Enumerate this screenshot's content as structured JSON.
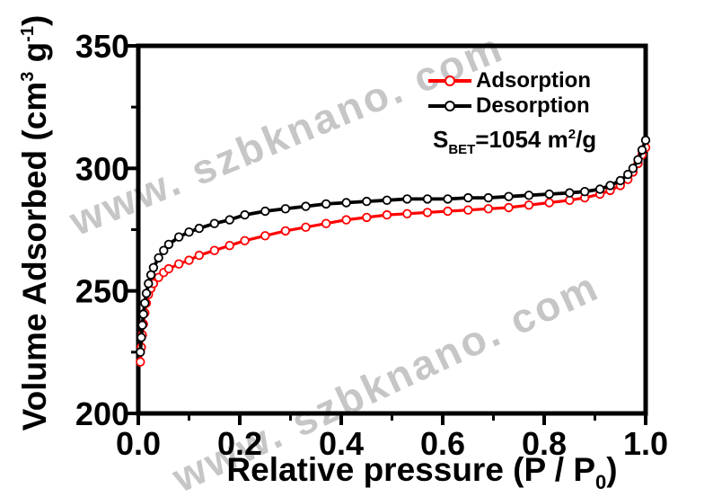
{
  "watermark": {
    "text": "www. szbknano. com",
    "color": "#c6c6c6"
  },
  "labels": {
    "ylabel_parts": {
      "pre": "Volume Adsorbed (cm",
      "sup1": "3",
      "mid": " g",
      "sup2": "-1",
      "post": ")"
    },
    "xlabel_parts": {
      "pre": "Relative pressure (P / P",
      "sub": "0",
      "post": ")"
    },
    "sbet_parts": {
      "pre": "S",
      "sub": "BET",
      "mid": "=1054 m",
      "sup": "2",
      "post": "/g"
    }
  },
  "chart_data": {
    "type": "line",
    "title": "",
    "xlabel": "Relative pressure (P / P₀)",
    "ylabel": "Volume Adsorbed (cm³ g⁻¹)",
    "annotation": "S_BET = 1054 m²/g",
    "xlim": [
      0.0,
      1.0
    ],
    "ylim": [
      200,
      350
    ],
    "x_major_ticks": [
      0.0,
      0.2,
      0.4,
      0.6,
      0.8,
      1.0
    ],
    "x_tick_labels": [
      "0.0",
      "0.2",
      "0.4",
      "0.6",
      "0.8",
      "1.0"
    ],
    "x_minor_ticks": [
      0.1,
      0.3,
      0.5,
      0.7,
      0.9
    ],
    "y_major_ticks": [
      200,
      250,
      300,
      350
    ],
    "y_tick_labels": [
      "200",
      "250",
      "300",
      "350"
    ],
    "y_minor_ticks": [
      225,
      275,
      325
    ],
    "grid": false,
    "legend_position": "upper-right-inside",
    "frame_color": "#000000",
    "series": [
      {
        "name": "Adsorption",
        "color": "#ff0000",
        "marker": "open-circle",
        "points": [
          [
            0.004,
            221
          ],
          [
            0.006,
            227
          ],
          [
            0.008,
            232
          ],
          [
            0.01,
            236.5
          ],
          [
            0.013,
            241
          ],
          [
            0.016,
            245
          ],
          [
            0.02,
            248.5
          ],
          [
            0.025,
            251
          ],
          [
            0.03,
            253
          ],
          [
            0.04,
            255.5
          ],
          [
            0.05,
            257.5
          ],
          [
            0.06,
            259
          ],
          [
            0.08,
            261
          ],
          [
            0.1,
            262.5
          ],
          [
            0.12,
            264.5
          ],
          [
            0.15,
            266.5
          ],
          [
            0.18,
            268.5
          ],
          [
            0.21,
            270.5
          ],
          [
            0.25,
            272.5
          ],
          [
            0.29,
            274.5
          ],
          [
            0.33,
            276
          ],
          [
            0.37,
            277.5
          ],
          [
            0.41,
            279
          ],
          [
            0.45,
            280
          ],
          [
            0.49,
            281
          ],
          [
            0.53,
            281.5
          ],
          [
            0.57,
            282
          ],
          [
            0.61,
            282.5
          ],
          [
            0.65,
            283
          ],
          [
            0.69,
            283.5
          ],
          [
            0.73,
            284
          ],
          [
            0.77,
            285
          ],
          [
            0.81,
            286
          ],
          [
            0.85,
            287
          ],
          [
            0.88,
            288
          ],
          [
            0.91,
            289.5
          ],
          [
            0.93,
            291
          ],
          [
            0.95,
            293
          ],
          [
            0.965,
            295.5
          ],
          [
            0.975,
            298.5
          ],
          [
            0.985,
            302
          ],
          [
            0.993,
            305.5
          ],
          [
            1.0,
            308.5
          ]
        ]
      },
      {
        "name": "Desorption",
        "color": "#000000",
        "marker": "open-circle",
        "points": [
          [
            0.004,
            225
          ],
          [
            0.006,
            231
          ],
          [
            0.008,
            236
          ],
          [
            0.01,
            240.5
          ],
          [
            0.013,
            245
          ],
          [
            0.016,
            249
          ],
          [
            0.02,
            253
          ],
          [
            0.025,
            256.5
          ],
          [
            0.03,
            259.5
          ],
          [
            0.04,
            263.5
          ],
          [
            0.05,
            266.5
          ],
          [
            0.06,
            269
          ],
          [
            0.08,
            272
          ],
          [
            0.1,
            274
          ],
          [
            0.12,
            275.5
          ],
          [
            0.15,
            277.5
          ],
          [
            0.18,
            279
          ],
          [
            0.21,
            281
          ],
          [
            0.25,
            282.5
          ],
          [
            0.29,
            283.5
          ],
          [
            0.33,
            284.5
          ],
          [
            0.37,
            285.5
          ],
          [
            0.41,
            286
          ],
          [
            0.45,
            286.5
          ],
          [
            0.49,
            287
          ],
          [
            0.53,
            287.5
          ],
          [
            0.57,
            287.5
          ],
          [
            0.61,
            287.5
          ],
          [
            0.65,
            288
          ],
          [
            0.69,
            288
          ],
          [
            0.73,
            288.5
          ],
          [
            0.77,
            289
          ],
          [
            0.81,
            289.5
          ],
          [
            0.85,
            290
          ],
          [
            0.88,
            290.5
          ],
          [
            0.91,
            291.5
          ],
          [
            0.93,
            293
          ],
          [
            0.95,
            295
          ],
          [
            0.965,
            297.5
          ],
          [
            0.975,
            300
          ],
          [
            0.985,
            303.5
          ],
          [
            0.993,
            307.5
          ],
          [
            1.0,
            311.5
          ]
        ]
      }
    ]
  }
}
